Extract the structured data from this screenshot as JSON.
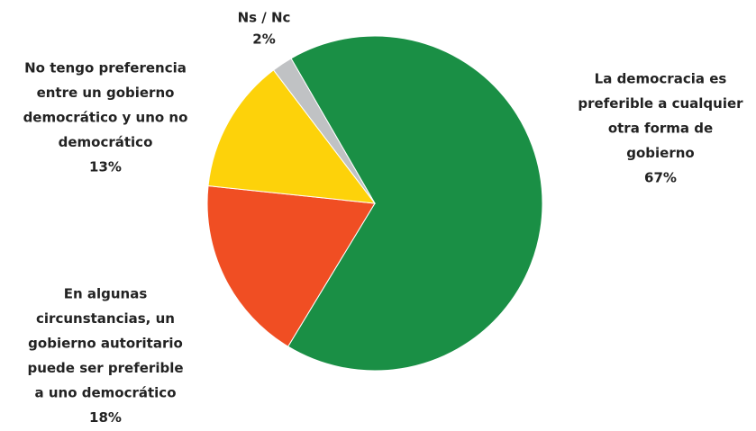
{
  "chart_data": {
    "type": "pie",
    "labels": [
      [
        "La democracia es",
        "preferible a cualquier",
        "otra forma de",
        "gobierno"
      ],
      [
        "En algunas",
        "circunstancias, un",
        "gobierno autoritario",
        "puede ser preferible",
        "a uno democrático"
      ],
      [
        "No tengo preferencia",
        "entre un gobierno",
        "democrático y uno no",
        "democrático"
      ],
      [
        "Ns / Nc"
      ]
    ],
    "values": [
      67,
      18,
      13,
      2
    ],
    "value_labels": [
      "67%",
      "18%",
      "13%",
      "2%"
    ],
    "colors": [
      "#1a8f45",
      "#f04e23",
      "#fdd20a",
      "#c0c2c4"
    ]
  }
}
